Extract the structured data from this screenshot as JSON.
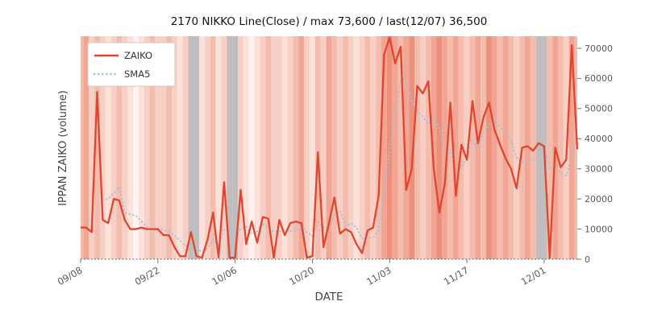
{
  "chart_data": {
    "type": "line",
    "title": "2170 NIKKO Line(Close) / max 73,600 / last(12/07) 36,500",
    "xlabel": "DATE",
    "ylabel": "IPPAN ZAIKO (volume)",
    "ylim": [
      0,
      74000
    ],
    "yticks": [
      0,
      10000,
      20000,
      30000,
      40000,
      50000,
      60000,
      70000
    ],
    "xticks": [
      "09/08",
      "09/22",
      "10/06",
      "10/20",
      "11/03",
      "11/17",
      "12/01"
    ],
    "legend_position": "upper-left",
    "grid": "zero-line-dotted",
    "max_annotation": {
      "value": 73600,
      "label": "max 73,600"
    },
    "last_annotation": {
      "date": "12/07",
      "value": 36500,
      "label": "last(12/07) 36,500"
    },
    "dates": [
      "09/08",
      "09/09",
      "09/10",
      "09/11",
      "09/12",
      "09/13",
      "09/14",
      "09/15",
      "09/16",
      "09/17",
      "09/18",
      "09/19",
      "09/20",
      "09/21",
      "09/22",
      "09/23",
      "09/24",
      "09/25",
      "09/26",
      "09/27",
      "09/28",
      "09/29",
      "09/30",
      "10/01",
      "10/02",
      "10/03",
      "10/04",
      "10/05",
      "10/06",
      "10/07",
      "10/08",
      "10/09",
      "10/10",
      "10/11",
      "10/12",
      "10/13",
      "10/14",
      "10/15",
      "10/16",
      "10/17",
      "10/18",
      "10/19",
      "10/20",
      "10/21",
      "10/22",
      "10/23",
      "10/24",
      "10/25",
      "10/26",
      "10/27",
      "10/28",
      "10/29",
      "10/30",
      "10/31",
      "11/01",
      "11/02",
      "11/03",
      "11/04",
      "11/05",
      "11/06",
      "11/07",
      "11/08",
      "11/09",
      "11/10",
      "11/11",
      "11/12",
      "11/13",
      "11/14",
      "11/15",
      "11/16",
      "11/17",
      "11/18",
      "11/19",
      "11/20",
      "11/21",
      "11/22",
      "11/23",
      "11/24",
      "11/25",
      "11/26",
      "11/27",
      "11/28",
      "11/29",
      "11/30",
      "12/01",
      "12/02",
      "12/03",
      "12/04",
      "12/05",
      "12/06",
      "12/07"
    ],
    "series": [
      {
        "name": "ZAIKO",
        "style": "solid",
        "color": "#e2452f",
        "values": [
          10500,
          10500,
          9000,
          55500,
          13000,
          12000,
          20000,
          19500,
          13000,
          10000,
          10000,
          10500,
          10000,
          10000,
          10000,
          8000,
          8000,
          4000,
          1000,
          1000,
          9000,
          1000,
          500,
          6500,
          15500,
          500,
          25500,
          500,
          500,
          23000,
          5000,
          12500,
          5500,
          14000,
          13500,
          500,
          13000,
          8000,
          12000,
          12500,
          12000,
          500,
          1000,
          35500,
          4000,
          12000,
          20500,
          8500,
          10000,
          9000,
          5000,
          2000,
          9500,
          10500,
          21000,
          68000,
          73600,
          65000,
          70500,
          23000,
          30000,
          57500,
          55000,
          59000,
          30000,
          15500,
          25000,
          52000,
          21000,
          38000,
          33000,
          52500,
          38500,
          47000,
          52000,
          43000,
          38000,
          33500,
          30000,
          23500,
          37000,
          37500,
          36000,
          38500,
          37500,
          500,
          37000,
          30500,
          33000,
          71000,
          36500
        ]
      },
      {
        "name": "SMA5",
        "style": "dotted",
        "color": "#a0c3dc",
        "derived": "5-day moving average of ZAIKO"
      }
    ],
    "background_bands": {
      "palette": [
        "#fdf3f0",
        "#fbe1d9",
        "#f8cfc4",
        "#f4bcac",
        "#f1a592",
        "#ed8f7a"
      ],
      "gray_color": "#a9a7a7",
      "levels": "34232123210123223212gg12312gg210123221234213243232123234543453234543432343543432343gg343243"
    },
    "axis_colors": {
      "tick_label": "#595959",
      "axis_label": "#444444",
      "title": "#141414",
      "zero_line": "#444444"
    }
  }
}
